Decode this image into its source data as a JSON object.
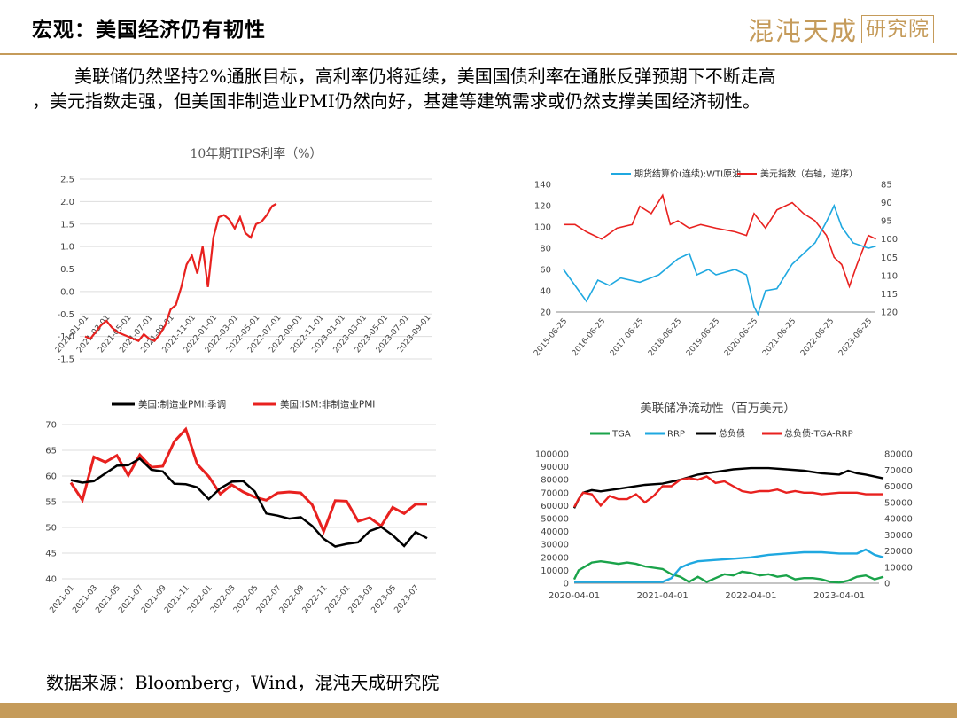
{
  "header": {
    "title": "宏观：美国经济仍有韧性",
    "brand_main": "混沌天成",
    "brand_box": "研究院"
  },
  "intro": {
    "line1": "美联储仍然坚持2%通胀目标，高利率仍将延续，美国国债利率在通胀反弹预期下不断走高",
    "line2": "，美元指数走强，但美国非制造业PMI仍然向好，基建等建筑需求或仍然支撑美国经济韧性。"
  },
  "source": "数据来源：Bloomberg，Wind，混沌天成研究院",
  "colors": {
    "brand": "#c59b5a",
    "red": "#e8211f",
    "blue": "#1fa8e0",
    "green": "#1aa34a",
    "black": "#000000"
  },
  "chart_data": [
    {
      "type": "line",
      "title": "10年期TIPS利率（%）",
      "ylim": [
        -1.5,
        2.5
      ],
      "yticks": [
        "2.5",
        "2.0",
        "1.5",
        "1.0",
        "0.5",
        "0.0",
        "-0.5",
        "-1.0",
        "-1.5"
      ],
      "xticks": [
        "2021-01-01",
        "2021-03-01",
        "2021-05-01",
        "2021-07-01",
        "2021-09-01",
        "2021-11-01",
        "2022-01-01",
        "2022-03-01",
        "2022-05-01",
        "2022-07-01",
        "2022-09-01",
        "2022-11-01",
        "2023-01-01",
        "2023-03-01",
        "2023-05-01",
        "2023-07-01",
        "2023-09-01"
      ],
      "series": [
        {
          "color": "#e8211f",
          "x": [
            0,
            0.5,
            1,
            1.5,
            2,
            2.5,
            3,
            3.5,
            4,
            4.5,
            5,
            5.5,
            6,
            6.5,
            7,
            7.5,
            8,
            8.5,
            9,
            9.5,
            10,
            10.5,
            11,
            11.5,
            12,
            12.5,
            13,
            13.5,
            14,
            14.5,
            15,
            15.5,
            16,
            16.5,
            17,
            17.5,
            17.9
          ],
          "values": [
            -1.0,
            -1.05,
            -0.9,
            -0.75,
            -0.65,
            -0.8,
            -0.9,
            -0.95,
            -1.0,
            -1.05,
            -1.1,
            -0.95,
            -1.05,
            -1.1,
            -0.95,
            -0.75,
            -0.4,
            -0.3,
            0.1,
            0.6,
            0.8,
            0.4,
            1.0,
            0.1,
            1.2,
            1.65,
            1.7,
            1.6,
            1.4,
            1.65,
            1.3,
            1.2,
            1.5,
            1.55,
            1.7,
            1.9,
            1.95
          ]
        }
      ]
    },
    {
      "type": "line",
      "legend": [
        "期货结算价(连续):WTI原油",
        "美元指数（右轴，逆序）"
      ],
      "ylim": [
        20,
        140
      ],
      "yticks": [
        "140",
        "120",
        "100",
        "80",
        "60",
        "40",
        "20"
      ],
      "y2lim": [
        85,
        120
      ],
      "y2ticks": [
        "85",
        "90",
        "95",
        "100",
        "105",
        "110",
        "115",
        "120"
      ],
      "xticks": [
        "2015-06-25",
        "2016-06-25",
        "2017-06-25",
        "2018-06-25",
        "2019-06-25",
        "2020-06-25",
        "2021-06-25",
        "2022-06-25",
        "2023-06-25"
      ],
      "series": [
        {
          "name": "期货结算价(连续):WTI原油",
          "color": "#1fa8e0",
          "axis": "left",
          "x": [
            0,
            0.3,
            0.6,
            0.9,
            1.2,
            1.5,
            2,
            2.5,
            3,
            3.3,
            3.5,
            3.8,
            4,
            4.5,
            4.8,
            5,
            5.1,
            5.3,
            5.6,
            6,
            6.3,
            6.6,
            6.9,
            7.1,
            7.3,
            7.6,
            8,
            8.2
          ],
          "values": [
            60,
            45,
            30,
            50,
            45,
            52,
            48,
            55,
            70,
            75,
            55,
            60,
            55,
            60,
            55,
            25,
            18,
            40,
            42,
            65,
            75,
            85,
            105,
            120,
            100,
            85,
            80,
            82
          ]
        },
        {
          "name": "美元指数（右轴，逆序）",
          "color": "#e8211f",
          "axis": "right",
          "x": [
            0,
            0.3,
            0.6,
            1,
            1.4,
            1.8,
            2,
            2.3,
            2.6,
            2.8,
            3,
            3.3,
            3.6,
            4,
            4.5,
            4.8,
            5,
            5.3,
            5.6,
            6,
            6.3,
            6.6,
            6.9,
            7.1,
            7.3,
            7.5,
            7.7,
            8,
            8.2
          ],
          "values": [
            96,
            96,
            98,
            100,
            97,
            96,
            91,
            93,
            88,
            96,
            95,
            97,
            96,
            97,
            98,
            99,
            93,
            97,
            92,
            90,
            93,
            95,
            99,
            105,
            107,
            113,
            107,
            99,
            100
          ]
        }
      ]
    },
    {
      "type": "line",
      "legend": [
        "美国:制造业PMI:季调",
        "美国:ISM:非制造业PMI"
      ],
      "ylim": [
        40,
        70
      ],
      "yticks": [
        "70",
        "65",
        "60",
        "55",
        "50",
        "45",
        "40"
      ],
      "xticks": [
        "2021-01",
        "2021-03",
        "2021-05",
        "2021-07",
        "2021-09",
        "2021-11",
        "2022-01",
        "2022-03",
        "2022-05",
        "2022-07",
        "2022-09",
        "2022-11",
        "2023-01",
        "2023-03",
        "2023-05",
        "2023-07"
      ],
      "series": [
        {
          "name": "美国:制造业PMI:季调",
          "color": "#000000",
          "values": [
            59.2,
            58.7,
            59.0,
            60.5,
            62.0,
            62.1,
            63.4,
            61.2,
            60.9,
            58.5,
            58.4,
            57.8,
            55.5,
            57.6,
            58.9,
            59.0,
            57.0,
            52.7,
            52.3,
            51.7,
            52.0,
            50.3,
            47.8,
            46.3,
            46.8,
            47.1,
            49.3,
            50.1,
            48.5,
            46.4,
            49.1,
            47.9
          ]
        },
        {
          "name": "美国:ISM:非制造业PMI",
          "color": "#e8211f",
          "values": [
            58.7,
            55.3,
            63.7,
            62.7,
            64.0,
            60.1,
            64.1,
            61.7,
            61.9,
            66.7,
            69.1,
            62.3,
            59.9,
            56.5,
            58.3,
            56.9,
            55.9,
            55.3,
            56.7,
            56.9,
            56.7,
            54.4,
            49.2,
            55.2,
            55.1,
            51.2,
            51.9,
            50.3,
            53.9,
            52.7,
            54.5,
            54.5
          ]
        }
      ]
    },
    {
      "type": "line",
      "title": "美联储净流动性（百万美元）",
      "legend": [
        "TGA",
        "RRP",
        "总负债",
        "总负债-TGA-RRP"
      ],
      "ylim": [
        0,
        100000
      ],
      "yticks": [
        "100000",
        "90000",
        "80000",
        "70000",
        "60000",
        "50000",
        "40000",
        "30000",
        "20000",
        "10000",
        "0"
      ],
      "y2lim": [
        0,
        80000
      ],
      "y2ticks": [
        "80000",
        "70000",
        "60000",
        "50000",
        "40000",
        "30000",
        "20000",
        "10000",
        "0"
      ],
      "xticks": [
        "2020-04-01",
        "2021-04-01",
        "2022-04-01",
        "2023-04-01"
      ],
      "series": [
        {
          "name": "TGA",
          "color": "#1aa34a",
          "axis": "left",
          "x": [
            0,
            0.05,
            0.1,
            0.2,
            0.3,
            0.4,
            0.5,
            0.6,
            0.7,
            0.8,
            0.9,
            1.0,
            1.1,
            1.2,
            1.3,
            1.4,
            1.5,
            1.6,
            1.7,
            1.8,
            1.9,
            2.0,
            2.1,
            2.2,
            2.3,
            2.4,
            2.5,
            2.6,
            2.7,
            2.8,
            2.9,
            3.0,
            3.1,
            3.2,
            3.3,
            3.4,
            3.5
          ],
          "values": [
            3000,
            10000,
            12000,
            16000,
            17000,
            16000,
            15000,
            16000,
            15000,
            13000,
            12000,
            11000,
            7000,
            5000,
            1000,
            5000,
            1000,
            4000,
            7000,
            6000,
            9000,
            8000,
            6000,
            7000,
            5000,
            6000,
            3000,
            4000,
            4000,
            3000,
            1000,
            500,
            2000,
            5000,
            6000,
            3000,
            5000
          ]
        },
        {
          "name": "RRP",
          "color": "#1fa8e0",
          "axis": "left",
          "x": [
            0,
            0.2,
            0.4,
            0.6,
            0.8,
            1.0,
            1.1,
            1.2,
            1.3,
            1.4,
            1.6,
            1.8,
            2.0,
            2.2,
            2.4,
            2.6,
            2.8,
            3.0,
            3.2,
            3.3,
            3.4,
            3.5
          ],
          "values": [
            1000,
            1000,
            1000,
            1000,
            1000,
            1000,
            4000,
            12000,
            15000,
            17000,
            18000,
            19000,
            20000,
            22000,
            23000,
            24000,
            24000,
            23000,
            23000,
            26000,
            22000,
            20000
          ]
        },
        {
          "name": "总负债",
          "color": "#000000",
          "axis": "left",
          "x": [
            0,
            0.05,
            0.1,
            0.2,
            0.3,
            0.5,
            0.8,
            1.0,
            1.2,
            1.4,
            1.6,
            1.8,
            2.0,
            2.2,
            2.4,
            2.6,
            2.8,
            3.0,
            3.1,
            3.2,
            3.3,
            3.5
          ],
          "values": [
            58000,
            65000,
            70000,
            72000,
            71000,
            73000,
            76000,
            77000,
            80000,
            84000,
            86000,
            88000,
            89000,
            89000,
            88000,
            87000,
            85000,
            84000,
            87000,
            85000,
            84000,
            81000
          ]
        },
        {
          "name": "总负债-TGA-RRP",
          "color": "#e8211f",
          "axis": "right",
          "x": [
            0,
            0.05,
            0.1,
            0.2,
            0.3,
            0.4,
            0.5,
            0.6,
            0.7,
            0.8,
            0.9,
            1.0,
            1.1,
            1.2,
            1.3,
            1.4,
            1.5,
            1.6,
            1.7,
            1.8,
            1.9,
            2.0,
            2.1,
            2.2,
            2.3,
            2.4,
            2.5,
            2.6,
            2.7,
            2.8,
            3.0,
            3.2,
            3.3,
            3.5
          ],
          "values": [
            47000,
            52000,
            56000,
            55000,
            48000,
            54000,
            52000,
            52000,
            55000,
            50000,
            54000,
            60000,
            60000,
            64000,
            65000,
            64000,
            66000,
            62000,
            63000,
            60000,
            57000,
            56000,
            57000,
            57000,
            58000,
            56000,
            57000,
            56000,
            56000,
            55000,
            56000,
            56000,
            55000,
            55000
          ]
        }
      ]
    }
  ]
}
